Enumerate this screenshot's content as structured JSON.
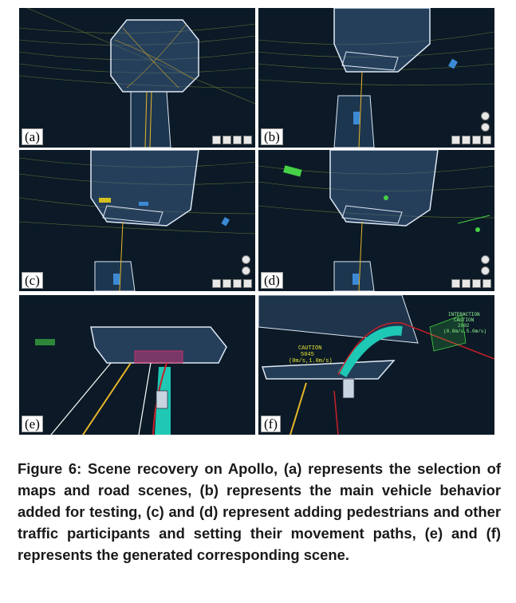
{
  "figure": {
    "panels": [
      {
        "id": "a",
        "label": "(a)"
      },
      {
        "id": "b",
        "label": "(b)"
      },
      {
        "id": "c",
        "label": "(c)"
      },
      {
        "id": "d",
        "label": "(d)"
      },
      {
        "id": "e",
        "label": "(e)"
      },
      {
        "id": "f",
        "label": "(f)"
      }
    ],
    "scene_text": {
      "caution_label": "CAUTION",
      "caution_id": "5045",
      "caution_speed": "(0m/s,1.0m/s)",
      "interaction_label": "INTERACTION",
      "interaction_caution": "CAUTION",
      "interaction_id": "2002",
      "interaction_speed": "(0.0m/s,5.0m/s)"
    },
    "caption": "Figure 6: Scene recovery on Apollo, (a) represents the selection of maps and road scenes, (b) represents the main vehicle behavior added for testing, (c) and (d) represent adding pedestrians and other traffic participants and setting their movement paths, (e) and (f) represents the generated corresponding scene."
  },
  "colors": {
    "background": "#0b1a26",
    "road_fill": "#2a4a6a",
    "road_edge": "#ffffff",
    "lane_yellow": "#e8b62a",
    "path_red": "#c8202a",
    "path_teal": "#1ec8b4",
    "agent_green": "#46d146",
    "obstacle_pink": "#e03070"
  }
}
